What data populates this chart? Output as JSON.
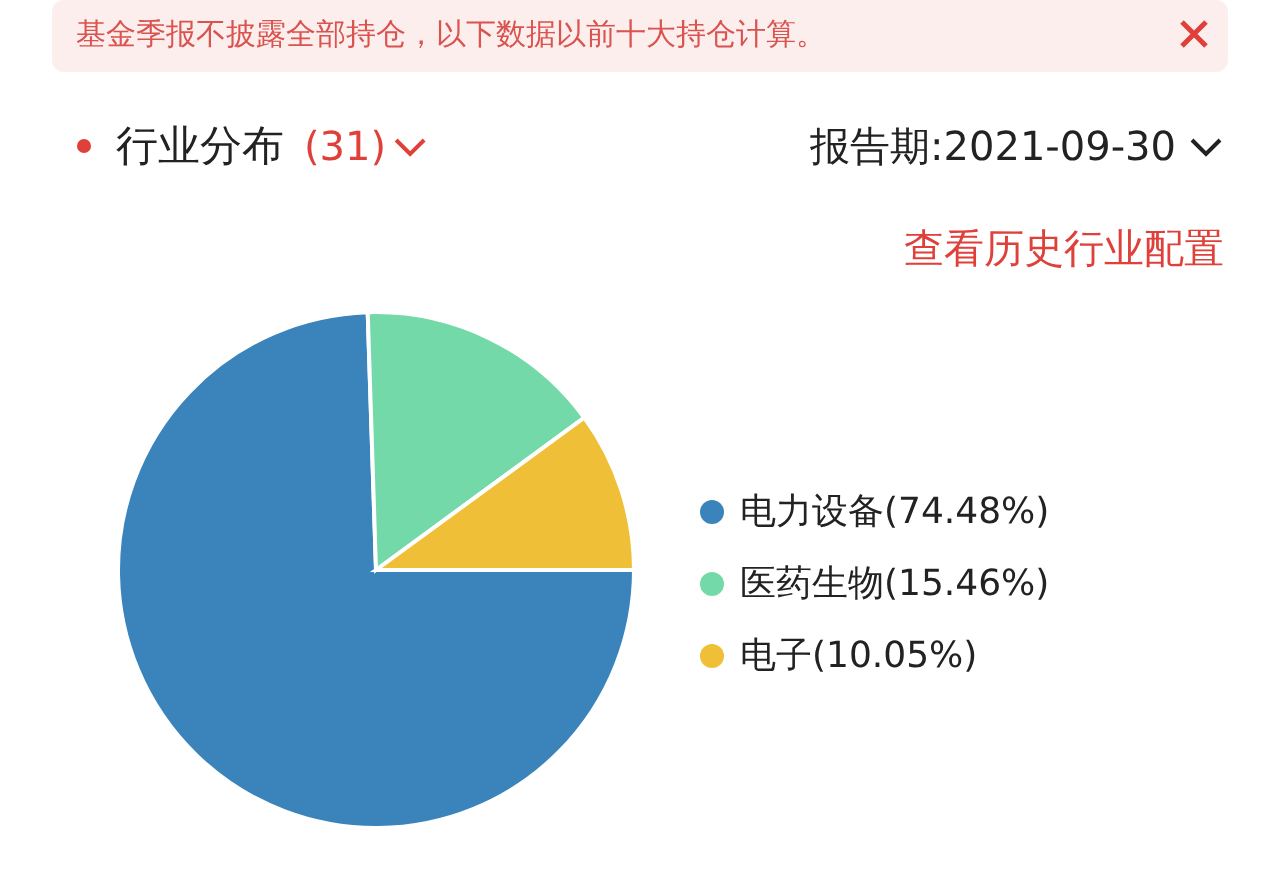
{
  "chart_data": {
    "type": "pie",
    "title": "行业分布",
    "annotations": [
      "基金季报不披露全部持仓，以下数据以前十大持仓计算。",
      "(31)",
      "报告期:2021-09-30",
      "查看历史行业配置"
    ],
    "categories": [
      "电力设备",
      "医药生物",
      "电子"
    ],
    "values": [
      74.48,
      15.46,
      10.05
    ],
    "value_labels": [
      "(74.48%)",
      "(15.46%)",
      "(10.05%)"
    ],
    "colors": [
      "#3a84bb",
      "#74d9a8",
      "#f0bf38"
    ],
    "legend": "right"
  }
}
